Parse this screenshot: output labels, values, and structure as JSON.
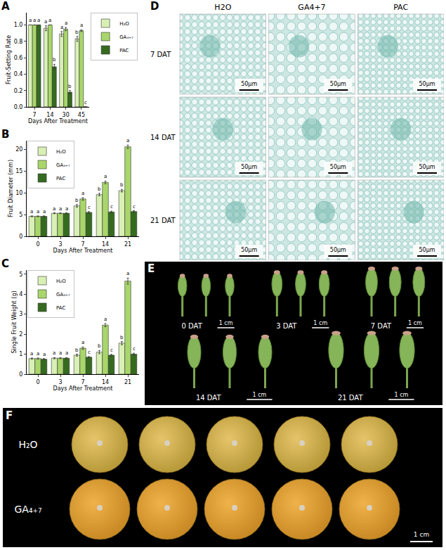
{
  "chart_data": [
    {
      "type": "bar",
      "panel": "A",
      "xlabel": "Days After Treatment",
      "ylabel": "Fruit-Setting Rate",
      "categories": [
        "7",
        "14",
        "30",
        "45"
      ],
      "series": [
        {
          "name": "H₂O",
          "color": "#d9f0b5",
          "values": [
            1.0,
            0.96,
            0.89,
            0.83
          ],
          "errors": [
            0,
            0.03,
            0.03,
            0.03
          ],
          "letters": [
            "a",
            "a",
            "a",
            "b"
          ]
        },
        {
          "name": "GA₄₊₇",
          "color": "#a9d66b",
          "values": [
            1.0,
            1.0,
            0.95,
            0.93
          ],
          "errors": [
            0,
            0,
            0.02,
            0.01
          ],
          "letters": [
            "a",
            "a",
            "a",
            "a"
          ]
        },
        {
          "name": "PAC",
          "color": "#356b1f",
          "values": [
            1.0,
            0.49,
            0.18,
            0
          ],
          "errors": [
            0,
            0.03,
            0.02,
            0
          ],
          "letters": [
            "a",
            "b",
            "b",
            "c"
          ]
        }
      ],
      "ylim": [
        0,
        1.15
      ],
      "yticks": [
        {
          "value": 0,
          "label": "0.0"
        },
        {
          "value": 0.2,
          "label": "0.2"
        },
        {
          "value": 0.4,
          "label": "0.4"
        },
        {
          "value": 0.6,
          "label": "0.6"
        },
        {
          "value": 0.8,
          "label": "0.8"
        },
        {
          "value": 1.0,
          "label": "1.0"
        }
      ],
      "grid": false,
      "legend": "right"
    },
    {
      "type": "bar",
      "panel": "B",
      "xlabel": "Days After Treatment",
      "ylabel": "Fruit Diameter (mm)",
      "categories": [
        "0",
        "3",
        "7",
        "14",
        "21"
      ],
      "series": [
        {
          "name": "H₂O",
          "color": "#d9f0b5",
          "values": [
            4.6,
            5.3,
            7.0,
            9.6,
            10.5
          ],
          "errors": [
            0.1,
            0.1,
            0.3,
            0.3,
            0.3
          ],
          "letters": [
            "a",
            "a",
            "b",
            "b",
            "b"
          ]
        },
        {
          "name": "GA₄₊₇",
          "color": "#a9d66b",
          "values": [
            4.6,
            5.3,
            8.6,
            12.4,
            20.6
          ],
          "errors": [
            0.1,
            0.1,
            0.3,
            0.3,
            0.4
          ],
          "letters": [
            "a",
            "a",
            "a",
            "a",
            "a"
          ]
        },
        {
          "name": "PAC",
          "color": "#356b1f",
          "values": [
            4.6,
            5.3,
            5.5,
            5.6,
            5.7
          ],
          "errors": [
            0.1,
            0.1,
            0.2,
            0.2,
            0.2
          ],
          "letters": [
            "a",
            "a",
            "c",
            "c",
            "c"
          ]
        }
      ],
      "ylim": [
        0,
        22
      ],
      "yticks": [
        0,
        5,
        10,
        15,
        20
      ],
      "grid": false,
      "legend": "upper left"
    },
    {
      "type": "bar",
      "panel": "C",
      "xlabel": "Days After Treatment",
      "ylabel": "Single Fruit Weight (g)",
      "categories": [
        "0",
        "3",
        "7",
        "14",
        "21"
      ],
      "series": [
        {
          "name": "H₂O",
          "color": "#d9f0b5",
          "values": [
            0.78,
            0.8,
            0.95,
            1.1,
            1.55
          ],
          "errors": [
            0.03,
            0.03,
            0.05,
            0.08,
            0.08
          ],
          "letters": [
            "a",
            "a",
            "b",
            "b",
            "b"
          ]
        },
        {
          "name": "GA₄₊₇",
          "color": "#a9d66b",
          "values": [
            0.78,
            0.8,
            1.3,
            2.45,
            4.65
          ],
          "errors": [
            0.03,
            0.03,
            0.06,
            0.08,
            0.15
          ],
          "letters": [
            "a",
            "a",
            "a",
            "a",
            "a"
          ]
        },
        {
          "name": "PAC",
          "color": "#356b1f",
          "values": [
            0.75,
            0.8,
            0.85,
            0.95,
            1.0
          ],
          "errors": [
            0.03,
            0.03,
            0.03,
            0.04,
            0.05
          ],
          "letters": [
            "a",
            "a",
            "c",
            "c",
            "c"
          ]
        }
      ],
      "ylim": [
        0,
        5.2
      ],
      "yticks": [
        0,
        1,
        2,
        3,
        4,
        5
      ],
      "grid": false,
      "legend": "upper left"
    }
  ],
  "image_panels": [
    {
      "panel": "D",
      "columns": [
        "H2O",
        "GA4+7",
        "PAC"
      ],
      "rows": [
        "7 DAT",
        "14 DAT",
        "21 DAT"
      ],
      "scale_bar": "50μm"
    },
    {
      "panel": "E",
      "groups": [
        {
          "label": "0 DAT",
          "count": 3
        },
        {
          "label": "3 DAT",
          "count": 3
        },
        {
          "label": "7 DAT",
          "count": 3
        },
        {
          "label": "14 DAT",
          "count": 3
        },
        {
          "label": "21 DAT",
          "count": 3
        }
      ],
      "scale_bar": "1 cm"
    },
    {
      "panel": "F",
      "rows": [
        {
          "label": "H₂O",
          "count": 5
        },
        {
          "label": "GA₄₊₇",
          "count": 5
        }
      ],
      "scale_bar": "1 cm"
    }
  ]
}
